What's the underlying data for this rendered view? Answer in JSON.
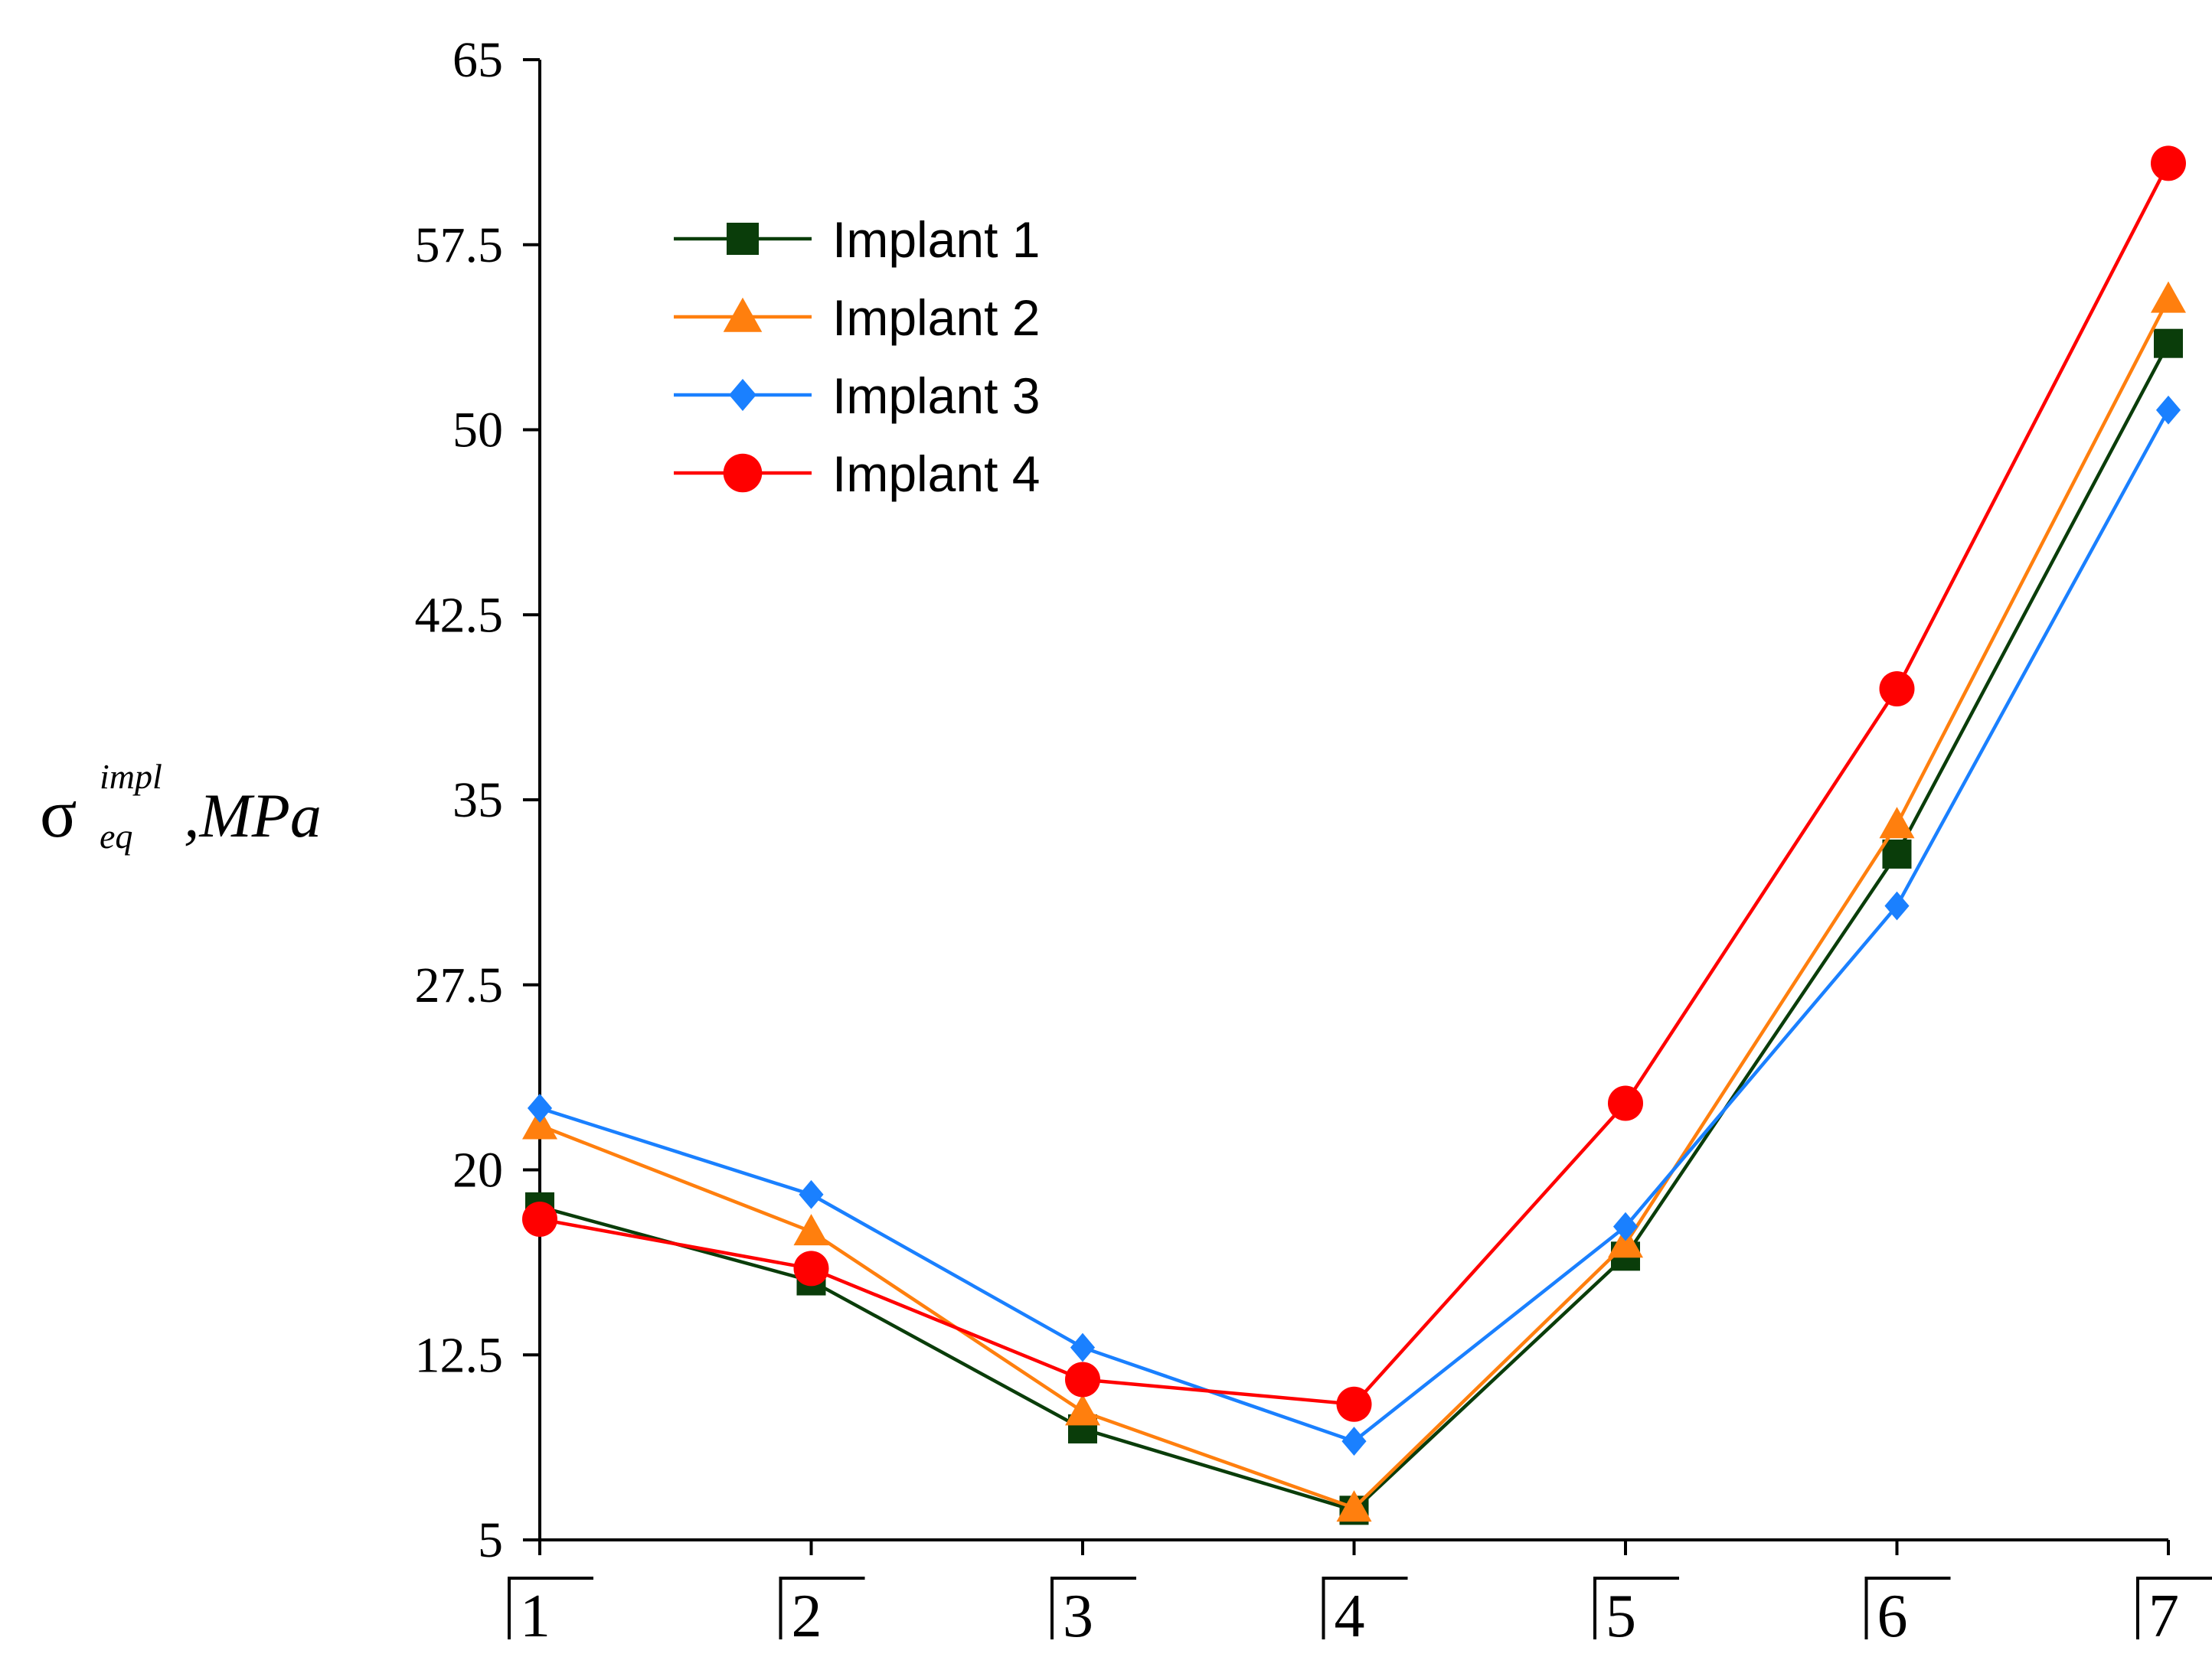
{
  "chart_data": {
    "type": "line",
    "title": "",
    "xlabel": "",
    "ylabel": {
      "symbol": "σ",
      "superscript": "impl",
      "subscript": "eq",
      "unit": ",MPa"
    },
    "categories": [
      "1",
      "2",
      "3",
      "4",
      "5",
      "6",
      "7"
    ],
    "ylim": [
      5,
      65
    ],
    "yticks": [
      "5",
      "12.5",
      "20",
      "27.5",
      "35",
      "42.5",
      "50",
      "57.5",
      "65"
    ],
    "grid": false,
    "legend_position": "top-left",
    "series": [
      {
        "name": "Implant 1",
        "color": "#0a3d0a",
        "marker": "square",
        "values": [
          18.5,
          15.5,
          9.5,
          6.2,
          16.5,
          32.8,
          53.5
        ]
      },
      {
        "name": "Implant 2",
        "color": "#ff7f0e",
        "marker": "triangle",
        "values": [
          21.8,
          17.5,
          10.2,
          6.3,
          17.0,
          34.0,
          55.3
        ]
      },
      {
        "name": "Implant 3",
        "color": "#1a80ff",
        "marker": "diamond",
        "values": [
          22.5,
          19.0,
          12.8,
          9.0,
          17.7,
          30.7,
          50.8
        ]
      },
      {
        "name": "Implant 4",
        "color": "#ff0000",
        "marker": "circle",
        "values": [
          18.0,
          16.0,
          11.5,
          10.5,
          22.7,
          39.5,
          60.8
        ]
      }
    ]
  }
}
